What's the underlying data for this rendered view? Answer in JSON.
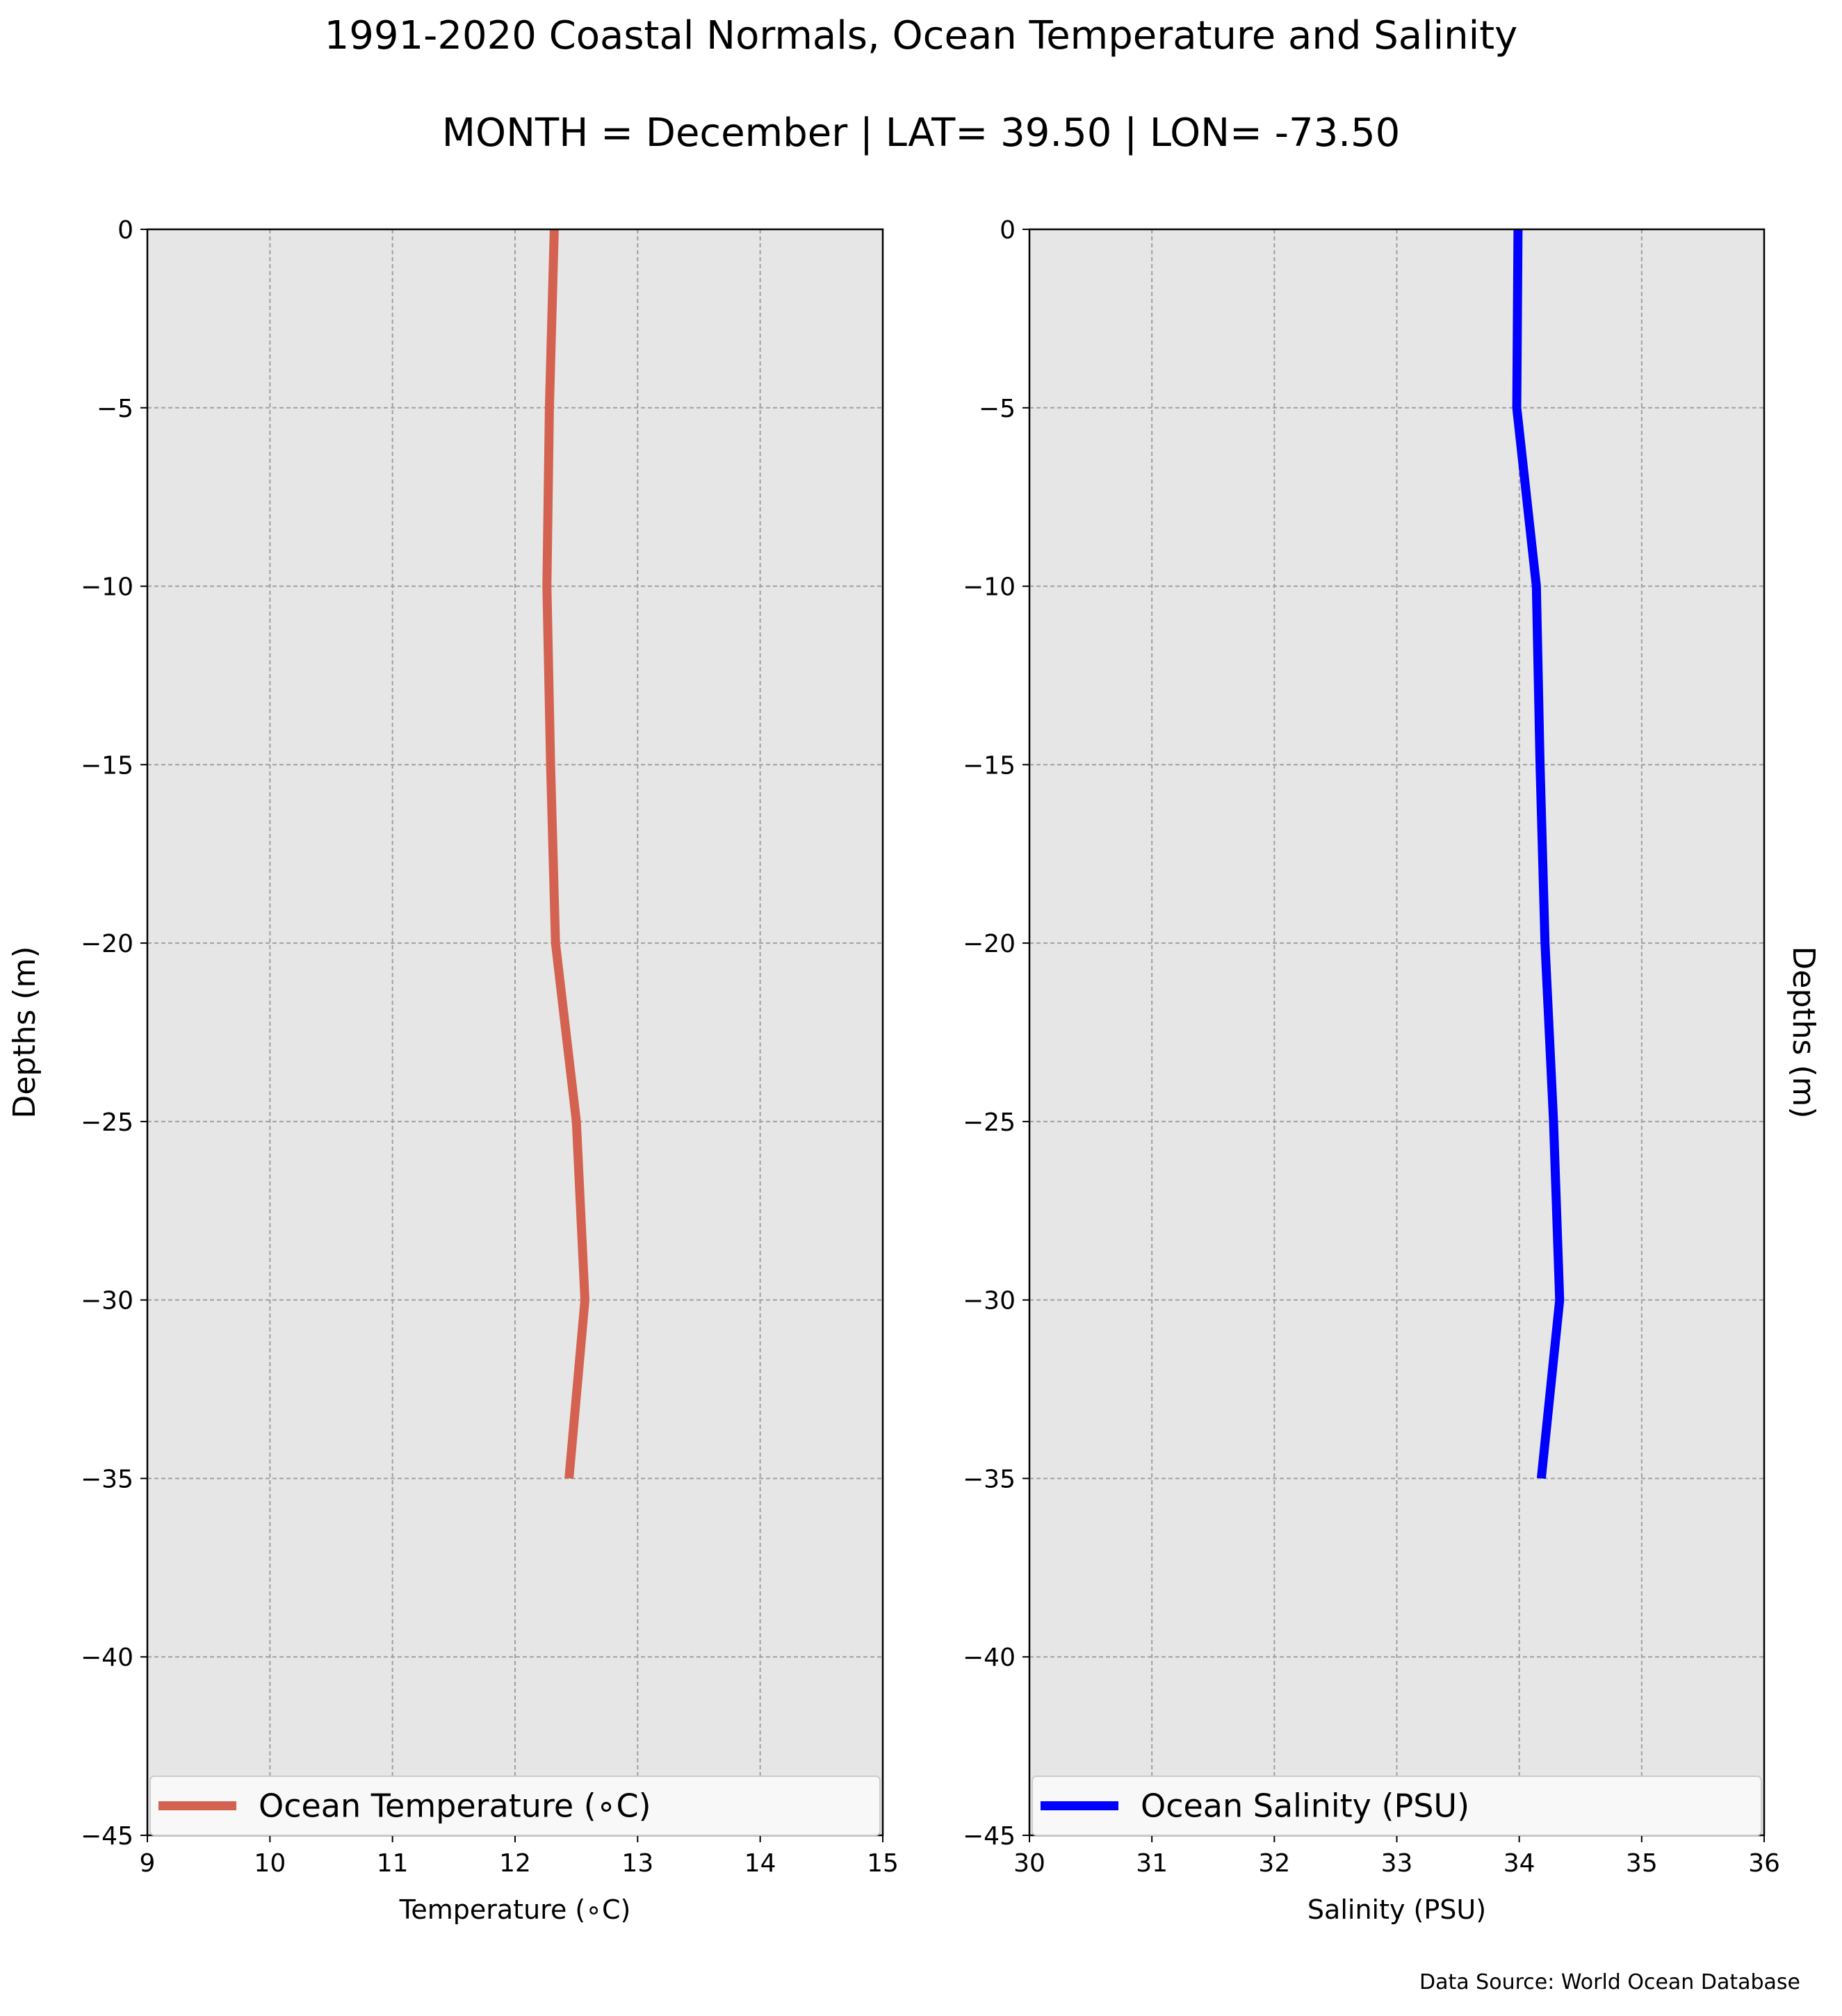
{
  "title": "1991-2020 Coastal Normals, Ocean Temperature and Salinity",
  "subtitle": "MONTH = December | LAT= 39.50 | LON= -73.50",
  "source_note": "Data Source: World Ocean Database",
  "colors": {
    "panel_bg": "#e6e6e6",
    "grid": "#a0a0a0",
    "temperature_line": "#d46250",
    "salinity_line": "#0000ff"
  },
  "chart_data": [
    {
      "type": "line",
      "title": "",
      "xlabel": "Temperature ($^\\circ$C)",
      "xlabel_display": "Temperature (∘C)",
      "ylabel": "Depths (m)",
      "ylabel_side": "left",
      "xlim": [
        9,
        15
      ],
      "ylim": [
        -45,
        0
      ],
      "xticks": [
        9,
        10,
        11,
        12,
        13,
        14,
        15
      ],
      "yticks": [
        0,
        -5,
        -10,
        -15,
        -20,
        -25,
        -30,
        -35,
        -40,
        -45
      ],
      "ytick_labels": [
        "0",
        "−5",
        "−10",
        "−15",
        "−20",
        "−25",
        "−30",
        "−35",
        "−40",
        "−45"
      ],
      "grid": true,
      "legend_position": "bottom",
      "series": [
        {
          "name": "Ocean Temperature (∘C)",
          "color": "#d46250",
          "x": [
            12.32,
            12.28,
            12.26,
            12.29,
            12.33,
            12.5,
            12.57,
            12.44
          ],
          "y": [
            0,
            -5,
            -10,
            -15,
            -20,
            -25,
            -30,
            -35
          ]
        }
      ]
    },
    {
      "type": "line",
      "title": "",
      "xlabel": "Salinity (PSU)",
      "ylabel": "Depths (m)",
      "ylabel_side": "right",
      "xlim": [
        30,
        36
      ],
      "ylim": [
        -45,
        0
      ],
      "xticks": [
        30,
        31,
        32,
        33,
        34,
        35,
        36
      ],
      "yticks": [
        0,
        -5,
        -10,
        -15,
        -20,
        -25,
        -30,
        -35,
        -40,
        -45
      ],
      "ytick_labels": [
        "0",
        "−5",
        "−10",
        "−15",
        "−20",
        "−25",
        "−30",
        "−35",
        "−40",
        "−45"
      ],
      "grid": true,
      "legend_position": "bottom",
      "series": [
        {
          "name": "Ocean Salinity (PSU)",
          "color": "#0000ff",
          "x": [
            33.99,
            33.98,
            34.14,
            34.17,
            34.21,
            34.28,
            34.33,
            34.18
          ],
          "y": [
            0,
            -5,
            -10,
            -15,
            -20,
            -25,
            -30,
            -35
          ]
        }
      ]
    }
  ]
}
